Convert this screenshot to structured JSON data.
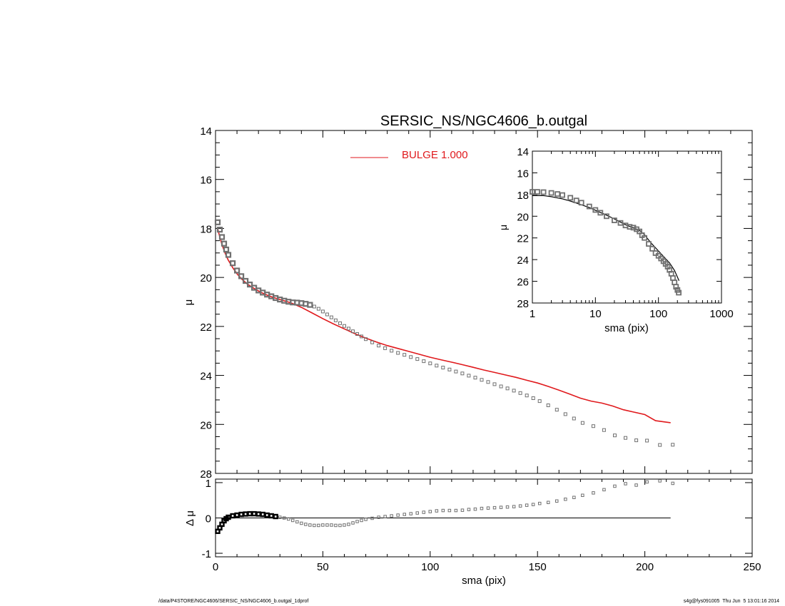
{
  "title": "SERSIC_NS/NGC4606_b.outgal",
  "footer_left": "/data/P4STORE/NGC4606/SERSIC_NS/NGC4606_b.outgal_1dprof",
  "footer_right": "s4g@fys091005  Thu Jun  5 13:01:16 2014",
  "colors": {
    "axis": "#000000",
    "model": "#e0191c",
    "data": "#707070"
  },
  "chart_data": [
    {
      "type": "scatter",
      "panel": "main",
      "ylabel": "μ",
      "xlim": [
        0,
        250
      ],
      "ylim": [
        28,
        14
      ],
      "x_ticks": [
        0,
        50,
        100,
        150,
        200,
        250
      ],
      "y_ticks": [
        14,
        16,
        18,
        20,
        22,
        24,
        26,
        28
      ],
      "legend": {
        "label": "BULGE  1.000",
        "color": "#e0191c",
        "placement": "top-center"
      },
      "series": [
        {
          "kind": "points",
          "x": [
            1,
            2,
            3,
            4,
            5,
            6,
            8,
            10,
            12,
            14,
            16,
            18,
            20,
            22,
            24,
            26,
            28,
            30,
            32,
            34,
            36,
            38,
            40,
            42,
            44,
            46,
            48,
            50,
            52,
            54,
            56,
            58,
            60,
            62,
            64,
            66,
            68,
            70,
            73,
            76,
            79,
            82,
            85,
            88,
            91,
            94,
            97,
            100,
            103,
            106,
            109,
            112,
            115,
            118,
            121,
            124,
            127,
            130,
            133,
            136,
            139,
            142,
            145,
            148,
            151,
            155,
            159,
            163,
            167,
            171,
            176,
            181,
            186,
            191,
            196,
            201,
            207,
            213
          ],
          "y": [
            17.75,
            18.05,
            18.35,
            18.62,
            18.86,
            19.08,
            19.42,
            19.72,
            19.95,
            20.14,
            20.29,
            20.42,
            20.53,
            20.62,
            20.7,
            20.77,
            20.84,
            20.9,
            20.95,
            20.99,
            21.02,
            21.03,
            21.05,
            21.08,
            21.12,
            21.19,
            21.28,
            21.39,
            21.51,
            21.63,
            21.75,
            21.87,
            21.98,
            22.09,
            22.2,
            22.31,
            22.41,
            22.52,
            22.65,
            22.78,
            22.89,
            22.99,
            23.08,
            23.16,
            23.25,
            23.33,
            23.42,
            23.51,
            23.6,
            23.68,
            23.76,
            23.84,
            23.92,
            24.01,
            24.09,
            24.18,
            24.27,
            24.36,
            24.45,
            24.53,
            24.62,
            24.72,
            24.82,
            24.93,
            25.05,
            25.22,
            25.4,
            25.58,
            25.76,
            25.94,
            26.07,
            26.23,
            26.45,
            26.55,
            26.65,
            26.66,
            26.84,
            26.83
          ]
        },
        {
          "kind": "line",
          "name": "BULGE  1.000",
          "x": [
            1,
            2,
            3,
            4,
            5,
            6,
            8,
            10,
            12,
            15,
            18,
            21,
            24,
            27,
            30,
            33,
            36,
            40,
            45,
            50,
            55,
            60,
            65,
            70,
            75,
            80,
            85,
            90,
            95,
            100,
            105,
            110,
            115,
            120,
            125,
            130,
            135,
            140,
            145,
            150,
            155,
            160,
            165,
            170,
            175,
            180,
            185,
            190,
            195,
            200,
            205,
            212
          ],
          "y": [
            18.0,
            18.35,
            18.65,
            18.9,
            19.12,
            19.3,
            19.6,
            19.85,
            20.05,
            20.28,
            20.45,
            20.6,
            20.72,
            20.82,
            20.9,
            20.98,
            21.07,
            21.22,
            21.45,
            21.68,
            21.9,
            22.1,
            22.3,
            22.48,
            22.64,
            22.78,
            22.9,
            23.02,
            23.14,
            23.26,
            23.36,
            23.46,
            23.56,
            23.67,
            23.78,
            23.88,
            23.98,
            24.08,
            24.2,
            24.31,
            24.45,
            24.6,
            24.76,
            24.93,
            25.05,
            25.13,
            25.25,
            25.4,
            25.5,
            25.6,
            25.85,
            25.93
          ]
        }
      ]
    },
    {
      "type": "scatter",
      "panel": "residual",
      "xlabel": "sma (pix)",
      "ylabel": "Δ μ",
      "xlim": [
        0,
        250
      ],
      "ylim": [
        -1.1,
        1.1
      ],
      "x_ticks": [
        0,
        50,
        100,
        150,
        200,
        250
      ],
      "y_ticks": [
        -1,
        0,
        1
      ],
      "zero_line": {
        "y": 0,
        "x_end": 212
      },
      "series": [
        {
          "kind": "points",
          "x": [
            1,
            2,
            3,
            4,
            5,
            6,
            8,
            10,
            12,
            14,
            16,
            18,
            20,
            22,
            24,
            26,
            28,
            30,
            32,
            34,
            36,
            38,
            40,
            42,
            44,
            46,
            48,
            50,
            52,
            54,
            56,
            58,
            60,
            62,
            64,
            66,
            68,
            70,
            73,
            76,
            79,
            82,
            85,
            88,
            91,
            94,
            97,
            100,
            103,
            106,
            109,
            112,
            115,
            118,
            121,
            124,
            127,
            130,
            133,
            136,
            139,
            142,
            145,
            148,
            151,
            155,
            159,
            163,
            167,
            171,
            176,
            181,
            186,
            191,
            196,
            201,
            207,
            213
          ],
          "y": [
            -0.38,
            -0.28,
            -0.18,
            -0.08,
            -0.02,
            0.02,
            0.06,
            0.08,
            0.1,
            0.11,
            0.12,
            0.12,
            0.11,
            0.1,
            0.08,
            0.06,
            0.04,
            0.02,
            0.0,
            -0.03,
            -0.07,
            -0.11,
            -0.15,
            -0.18,
            -0.2,
            -0.21,
            -0.21,
            -0.2,
            -0.2,
            -0.2,
            -0.21,
            -0.21,
            -0.2,
            -0.18,
            -0.14,
            -0.1,
            -0.07,
            -0.04,
            -0.01,
            0.02,
            0.04,
            0.06,
            0.08,
            0.1,
            0.12,
            0.14,
            0.16,
            0.18,
            0.2,
            0.21,
            0.21,
            0.21,
            0.22,
            0.24,
            0.25,
            0.27,
            0.28,
            0.29,
            0.3,
            0.31,
            0.32,
            0.34,
            0.36,
            0.38,
            0.41,
            0.44,
            0.48,
            0.53,
            0.58,
            0.64,
            0.71,
            0.8,
            0.9,
            0.97,
            0.93,
            1.02,
            1.05,
            0.98
          ]
        }
      ]
    },
    {
      "type": "scatter",
      "panel": "inset",
      "xlabel": "sma (pix)",
      "ylabel": "μ",
      "x_scale": "log",
      "xlim": [
        1,
        1000
      ],
      "ylim": [
        28,
        14
      ],
      "x_ticks": [
        1,
        10,
        100,
        1000
      ],
      "x_tick_labels": [
        "1",
        "10",
        "100",
        "1000"
      ],
      "y_ticks": [
        14,
        16,
        18,
        20,
        22,
        24,
        26,
        28
      ],
      "series": [
        {
          "kind": "points",
          "x": [
            1,
            1.2,
            1.5,
            2,
            2.5,
            3,
            4,
            5,
            6,
            8,
            10,
            12,
            15,
            20,
            25,
            30,
            35,
            40,
            45,
            50,
            55,
            60,
            70,
            80,
            90,
            100,
            110,
            120,
            130,
            140,
            150,
            160,
            170,
            180,
            190,
            200,
            210
          ],
          "y": [
            17.75,
            17.75,
            17.78,
            17.85,
            17.95,
            18.05,
            18.3,
            18.55,
            18.75,
            19.1,
            19.42,
            19.68,
            20.0,
            20.38,
            20.62,
            20.85,
            20.98,
            21.05,
            21.2,
            21.4,
            21.75,
            22.0,
            22.55,
            23.0,
            23.4,
            23.65,
            23.9,
            24.15,
            24.4,
            24.65,
            24.95,
            25.3,
            25.7,
            26.1,
            26.5,
            26.8,
            27.05
          ]
        },
        {
          "kind": "line",
          "x": [
            1,
            1.5,
            2,
            3,
            4,
            6,
            8,
            10,
            15,
            20,
            30,
            40,
            50,
            60,
            70,
            80,
            100,
            120,
            150,
            180,
            212
          ],
          "y": [
            18.1,
            18.1,
            18.2,
            18.4,
            18.6,
            18.95,
            19.2,
            19.45,
            19.9,
            20.25,
            20.78,
            21.08,
            21.3,
            21.7,
            22.2,
            22.6,
            23.2,
            23.7,
            24.3,
            25.0,
            25.95
          ]
        }
      ]
    }
  ]
}
